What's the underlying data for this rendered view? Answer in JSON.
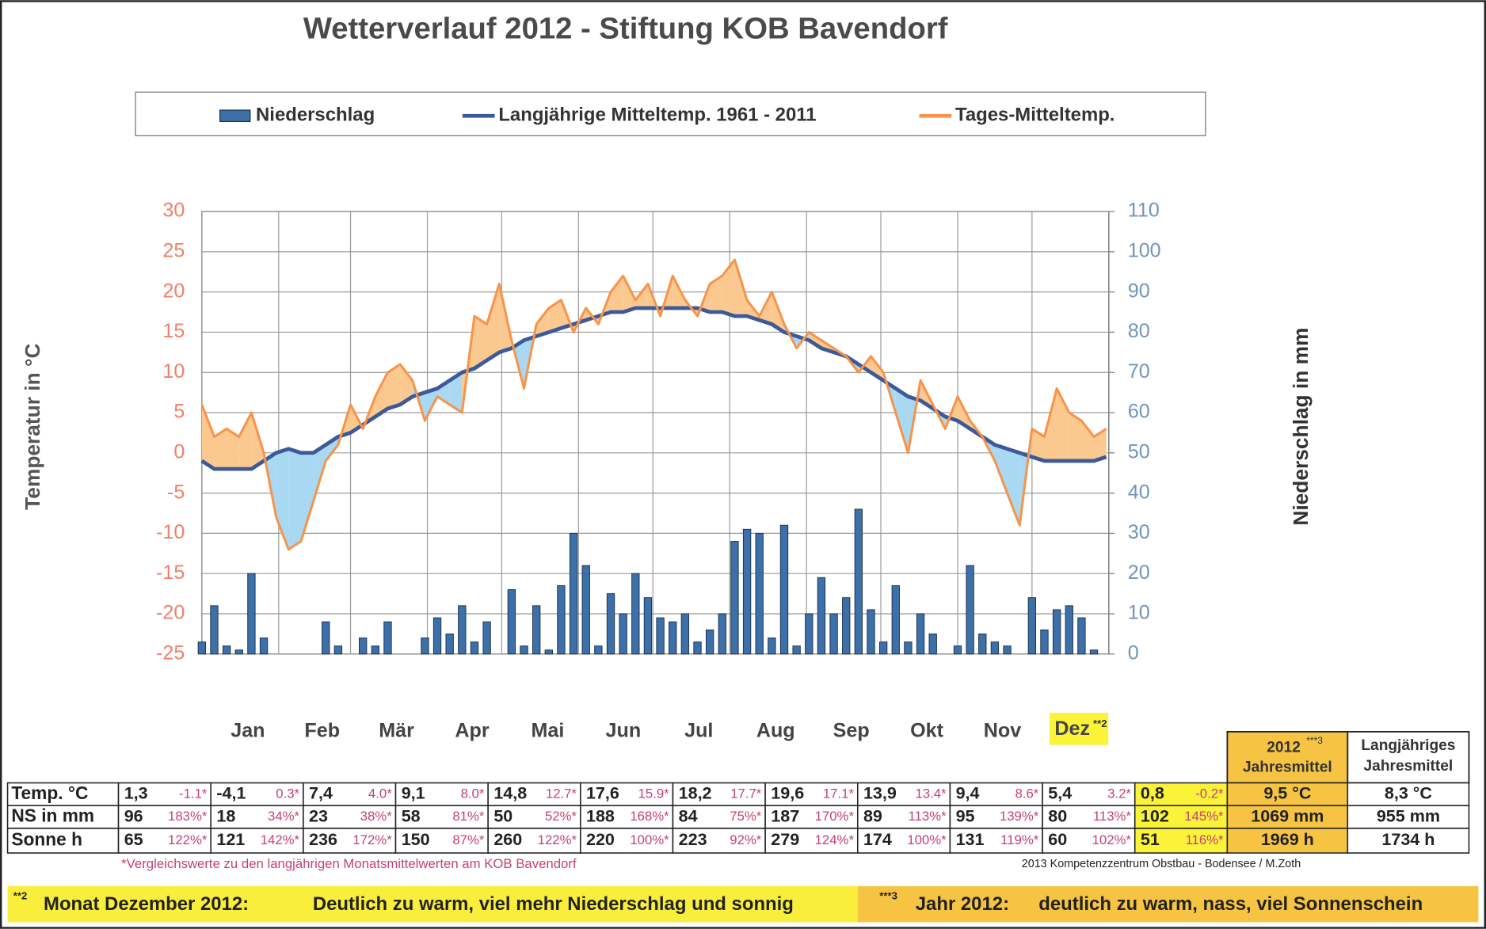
{
  "chart_data": {
    "type": "line",
    "title": "Wetterverlauf 2012  -  Stiftung KOB  Bavendorf",
    "y_label": "Temperatur in °C",
    "y2_label": "Niederschlag in mm",
    "xlim": [
      0,
      366
    ],
    "xticks": [
      {
        "value": 0,
        "label": "Jan"
      },
      {
        "value": 31,
        "label": "Feb"
      },
      {
        "value": 60,
        "label": "Mär"
      },
      {
        "value": 91,
        "label": "Apr"
      },
      {
        "value": 121,
        "label": "Mai"
      },
      {
        "value": 152,
        "label": "Jun"
      },
      {
        "value": 182,
        "label": "Jul"
      },
      {
        "value": 213,
        "label": "Aug"
      },
      {
        "value": 244,
        "label": "Sep"
      },
      {
        "value": 274,
        "label": "Okt"
      },
      {
        "value": 305,
        "label": "Nov"
      },
      {
        "value": 335,
        "label": "Dez"
      }
    ],
    "highlight_note": "**2",
    "ylim": [
      -25,
      30
    ],
    "yticks": [
      -25,
      -20,
      -15,
      -10,
      -5,
      0,
      5,
      10,
      15,
      20,
      25,
      30
    ],
    "y2lim": [
      0,
      110
    ],
    "y2ticks": [
      0,
      10,
      20,
      30,
      40,
      50,
      60,
      70,
      80,
      90,
      100,
      110
    ],
    "grid": true,
    "legend": "top",
    "x": [
      0,
      5,
      10,
      15,
      20,
      25,
      30,
      35,
      40,
      45,
      50,
      55,
      60,
      65,
      70,
      75,
      80,
      85,
      90,
      95,
      100,
      105,
      110,
      115,
      120,
      125,
      130,
      135,
      140,
      145,
      150,
      155,
      160,
      165,
      170,
      175,
      180,
      185,
      190,
      195,
      200,
      205,
      210,
      215,
      220,
      225,
      230,
      235,
      240,
      245,
      250,
      255,
      260,
      265,
      270,
      275,
      280,
      285,
      290,
      295,
      300,
      305,
      310,
      315,
      320,
      325,
      330,
      335,
      340,
      345,
      350,
      355,
      360,
      365
    ],
    "series": [
      {
        "name": "Niederschlag",
        "type": "bar",
        "axis": "y2",
        "color": "#3d6fa8",
        "values": [
          3,
          12,
          2,
          1,
          20,
          4,
          0,
          0,
          0,
          0,
          8,
          2,
          0,
          4,
          2,
          8,
          0,
          0,
          4,
          9,
          5,
          12,
          3,
          8,
          0,
          16,
          2,
          12,
          1,
          17,
          30,
          22,
          2,
          15,
          10,
          20,
          14,
          9,
          8,
          10,
          3,
          6,
          10,
          28,
          31,
          30,
          4,
          32,
          2,
          10,
          19,
          10,
          14,
          36,
          11,
          3,
          17,
          3,
          10,
          5,
          0,
          2,
          22,
          5,
          3,
          2,
          0,
          14,
          6,
          11,
          12,
          9,
          1,
          0
        ]
      },
      {
        "name": "Langjährige Mitteltemp. 1961 - 2011",
        "type": "line",
        "color": "#3c5a9a",
        "values": [
          -1,
          -2,
          -2,
          -2,
          -2,
          -1,
          0,
          0.5,
          0,
          0,
          1,
          2,
          2.5,
          3.5,
          4.5,
          5.5,
          6,
          7,
          7.5,
          8,
          9,
          10,
          10.5,
          11.5,
          12.5,
          13,
          14,
          14.5,
          15,
          15.5,
          16,
          16.5,
          17,
          17.5,
          17.5,
          18,
          18,
          18,
          18,
          18,
          18,
          17.5,
          17.5,
          17,
          17,
          16.5,
          16,
          15,
          14.5,
          14,
          13,
          12.5,
          12,
          11,
          10,
          9,
          8,
          7,
          6.5,
          5.5,
          4.5,
          4,
          3,
          2,
          1,
          0.5,
          0,
          -0.5,
          -1,
          -1,
          -1,
          -1,
          -1,
          -0.5
        ]
      },
      {
        "name": "Tages-Mitteltemp.",
        "type": "line",
        "color": "#f7934a",
        "values": [
          6,
          2,
          3,
          2,
          5,
          0,
          -8,
          -12,
          -11,
          -6,
          -1,
          1,
          6,
          3,
          7,
          10,
          11,
          9,
          4,
          7,
          6,
          5,
          17,
          16,
          21,
          14,
          8,
          16,
          18,
          19,
          15,
          18,
          16,
          20,
          22,
          19,
          21,
          17,
          22,
          19,
          17,
          21,
          22,
          24,
          19,
          17,
          20,
          16,
          13,
          15,
          14,
          13,
          12,
          10,
          12,
          10,
          5,
          0,
          9,
          6,
          3,
          7,
          4,
          2,
          -1,
          -5,
          -9,
          3,
          2,
          8,
          5,
          4,
          2,
          3
        ]
      }
    ]
  },
  "table": {
    "year_header": {
      "title": "2012",
      "note": "***3",
      "subtitle": "Jahresmittel"
    },
    "longterm_header": [
      "Langjähriges",
      "Jahresmittel"
    ],
    "rows": [
      {
        "label": "Temp. °C",
        "months": [
          [
            "1,3",
            "-1.1*"
          ],
          [
            "-4,1",
            "0.3*"
          ],
          [
            "7,4",
            "4.0*"
          ],
          [
            "9,1",
            "8.0*"
          ],
          [
            "14,8",
            "12.7*"
          ],
          [
            "17,6",
            "15.9*"
          ],
          [
            "18,2",
            "17.7*"
          ],
          [
            "19,6",
            "17.1*"
          ],
          [
            "13,9",
            "13.4*"
          ],
          [
            "9,4",
            "8.6*"
          ],
          [
            "5,4",
            "3.2*"
          ],
          [
            "0,8",
            "-0.2*"
          ]
        ],
        "year": "9,5 °C",
        "longterm": "8,3 °C"
      },
      {
        "label": "NS in mm",
        "months": [
          [
            "96",
            "183%*"
          ],
          [
            "18",
            "34%*"
          ],
          [
            "23",
            "38%*"
          ],
          [
            "58",
            "81%*"
          ],
          [
            "50",
            "52%*"
          ],
          [
            "188",
            "168%*"
          ],
          [
            "84",
            "75%*"
          ],
          [
            "187",
            "170%*"
          ],
          [
            "89",
            "113%*"
          ],
          [
            "95",
            "139%*"
          ],
          [
            "80",
            "113%*"
          ],
          [
            "102",
            "145%*"
          ]
        ],
        "year": "1069 mm",
        "longterm": "955  mm"
      },
      {
        "label": "Sonne h",
        "months": [
          [
            "65",
            "122%*"
          ],
          [
            "121",
            "142%*"
          ],
          [
            "236",
            "172%*"
          ],
          [
            "150",
            "87%*"
          ],
          [
            "260",
            "122%*"
          ],
          [
            "220",
            "100%*"
          ],
          [
            "223",
            "92%*"
          ],
          [
            "279",
            "124%*"
          ],
          [
            "174",
            "100%*"
          ],
          [
            "131",
            "119%*"
          ],
          [
            "60",
            "102%*"
          ],
          [
            "51",
            "116%*"
          ]
        ],
        "year": "1969 h",
        "longterm": "1734    h"
      }
    ]
  },
  "footer": {
    "footnote": "*Vergleichswerte zu den langjährigen Monatsmittelwerten am KOB Bavendorf",
    "credit": "2013  Kompetenzzentrum Obstbau - Bodensee / M.Zoth",
    "banner": {
      "month_note": "**2",
      "month_label": "Monat Dezember 2012:",
      "month_text": "Deutlich zu  warm, viel mehr Niederschlag und sonnig",
      "year_note": "***3",
      "year_label": "Jahr 2012:",
      "year_text": "deutlich zu warm,  nass,  viel Sonnenschein"
    }
  }
}
